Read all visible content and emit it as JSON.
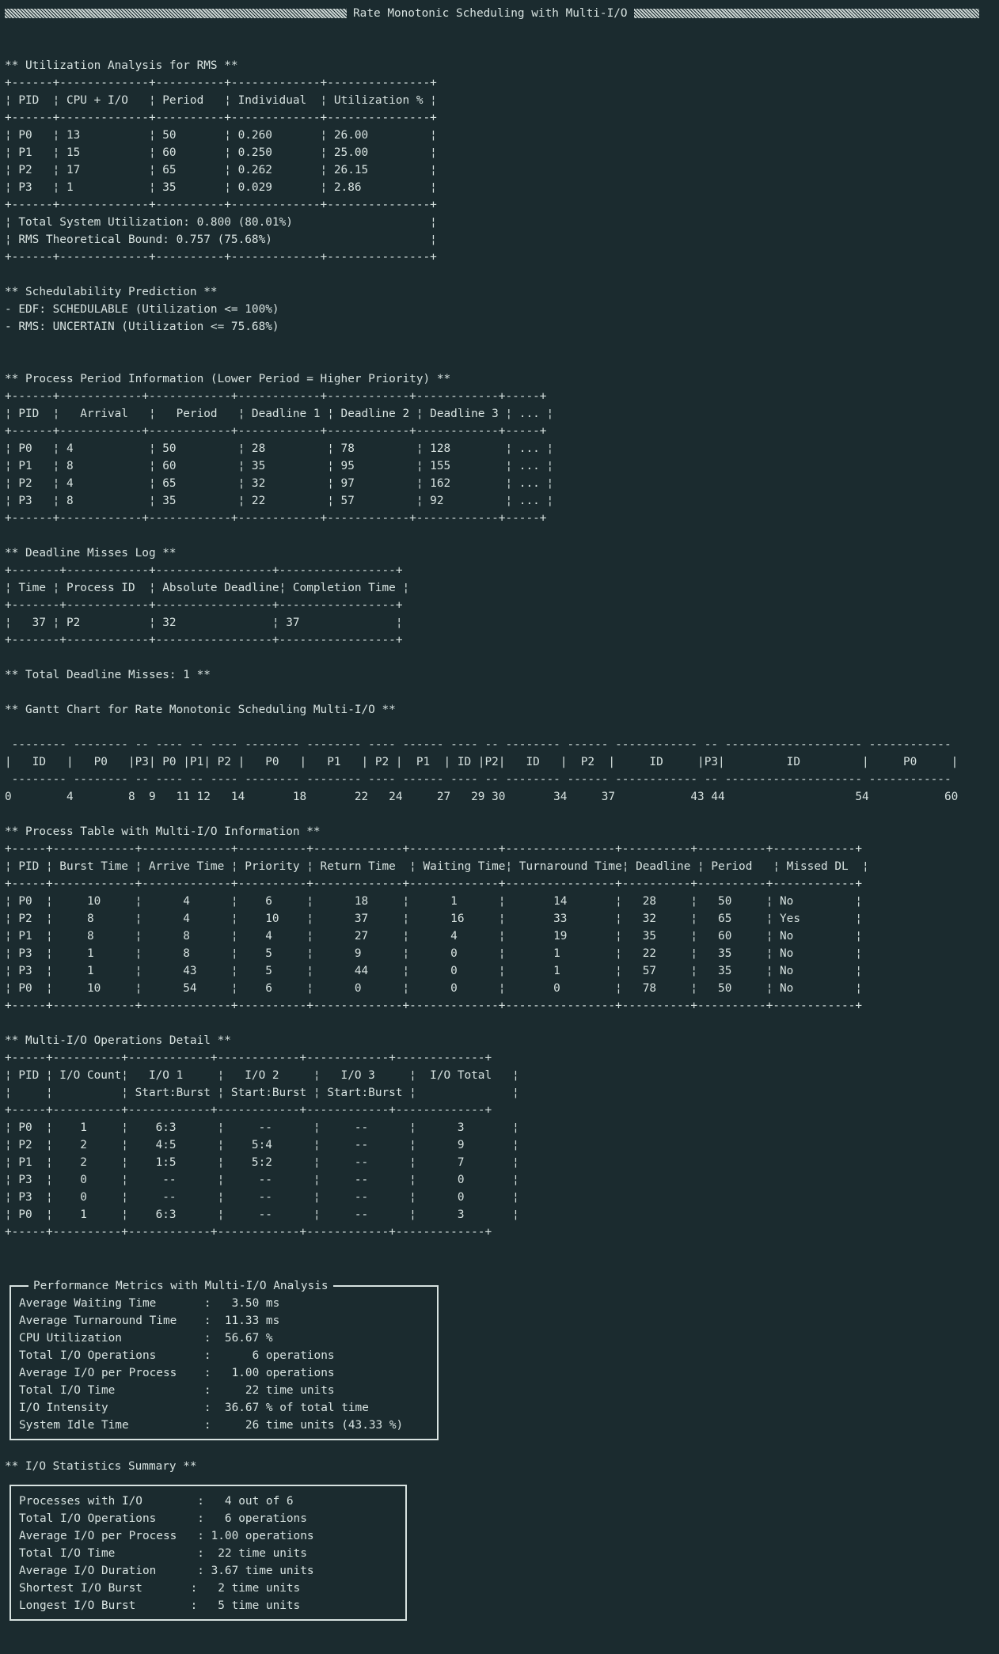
{
  "title": "Rate Monotonic Scheduling with Multi-I/O",
  "util": {
    "heading": "** Utilization Analysis for RMS **",
    "table": "+------+-------------+----------+-------------+---------------+\n¦ PID  ¦ CPU + I/O   ¦ Period   ¦ Individual  ¦ Utilization % ¦\n+------+-------------+----------+-------------+---------------+\n¦ P0   ¦ 13          ¦ 50       ¦ 0.260       ¦ 26.00         ¦\n¦ P1   ¦ 15          ¦ 60       ¦ 0.250       ¦ 25.00         ¦\n¦ P2   ¦ 17          ¦ 65       ¦ 0.262       ¦ 26.15         ¦\n¦ P3   ¦ 1           ¦ 35       ¦ 0.029       ¦ 2.86          ¦\n+------+-------------+----------+-------------+---------------+\n¦ Total System Utilization: 0.800 (80.01%)                    ¦\n¦ RMS Theoretical Bound: 0.757 (75.68%)                       ¦\n+------+-------------+----------+-------------+---------------+"
  },
  "sched": {
    "heading": "** Schedulability Prediction **",
    "lines": "- EDF: SCHEDULABLE (Utilization <= 100%)\n- RMS: UNCERTAIN (Utilization <= 75.68%)"
  },
  "period": {
    "heading": "** Process Period Information (Lower Period = Higher Priority) **",
    "table": "+------+------------+------------+------------+------------+------------+-----+\n¦ PID  ¦   Arrival   ¦   Period   ¦ Deadline 1 ¦ Deadline 2 ¦ Deadline 3 ¦ ... ¦\n+------+------------+------------+------------+------------+------------+-----+\n¦ P0   ¦ 4           ¦ 50         ¦ 28         ¦ 78         ¦ 128        ¦ ... ¦\n¦ P1   ¦ 8           ¦ 60         ¦ 35         ¦ 95         ¦ 155        ¦ ... ¦\n¦ P2   ¦ 4           ¦ 65         ¦ 32         ¦ 97         ¦ 162        ¦ ... ¦\n¦ P3   ¦ 8           ¦ 35         ¦ 22         ¦ 57         ¦ 92         ¦ ... ¦\n+------+------------+------------+------------+------------+------------+-----+"
  },
  "misses": {
    "heading": "** Deadline Misses Log **",
    "table": "+-------+------------+-----------------+-----------------+\n¦ Time ¦ Process ID  ¦ Absolute Deadline¦ Completion Time ¦\n+-------+------------+-----------------+-----------------+\n¦   37 ¦ P2          ¦ 32              ¦ 37              ¦\n+-------+------------+-----------------+-----------------+",
    "total": "** Total Deadline Misses: 1 **"
  },
  "gantt": {
    "heading": "** Gantt Chart for Rate Monotonic Scheduling Multi-I/O **",
    "top": " -------- -------- -- ---- -- ---- -------- -------- ---- ------ ---- -- -------- ------ ------------ -- -------------------- ------------",
    "row": "|   ID   |   P0   |P3| P0 |P1| P2 |   P0   |   P1   | P2 |  P1  | ID |P2|   ID   |  P2  |     ID     |P3|         ID         |     P0     |",
    "bottom": " -------- -------- -- ---- -- ---- -------- -------- ---- ------ ---- -- -------- ------ ------------ -- -------------------- ------------",
    "times": "0        4        8  9   11 12   14       18       22   24     27   29 30       34     37           43 44                   54           60"
  },
  "proc": {
    "heading": "** Process Table with Multi-I/O Information **",
    "table": "+-----+------------+-------------+----------+-------------+-------------+----------------+----------+----------+------------+\n¦ PID ¦ Burst Time ¦ Arrive Time ¦ Priority ¦ Return Time  ¦ Waiting Time¦ Turnaround Time¦ Deadline ¦ Period   ¦ Missed DL  ¦\n+-----+------------+-------------+----------+-------------+-------------+----------------+----------+----------+------------+\n¦ P0  ¦     10     ¦      4      ¦    6     ¦      18     ¦      1      ¦       14       ¦   28     ¦   50     ¦ No         ¦\n¦ P2  ¦     8      ¦      4      ¦    10    ¦      37     ¦      16     ¦       33       ¦   32     ¦   65     ¦ Yes        ¦\n¦ P1  ¦     8      ¦      8      ¦    4     ¦      27     ¦      4      ¦       19       ¦   35     ¦   60     ¦ No         ¦\n¦ P3  ¦     1      ¦      8      ¦    5     ¦      9      ¦      0      ¦       1        ¦   22     ¦   35     ¦ No         ¦\n¦ P3  ¦     1      ¦      43     ¦    5     ¦      44     ¦      0      ¦       1        ¦   57     ¦   35     ¦ No         ¦\n¦ P0  ¦     10     ¦      54     ¦    6     ¦      0      ¦      0      ¦       0        ¦   78     ¦   50     ¦ No         ¦\n+-----+------------+-------------+----------+-------------+-------------+----------------+----------+----------+------------+"
  },
  "multiio": {
    "heading": "** Multi-I/O Operations Detail **",
    "table": "+-----+----------+------------+------------+------------+-------------+\n¦ PID ¦ I/O Count¦   I/O 1     ¦   I/O 2     ¦   I/O 3     ¦  I/O Total   ¦\n¦     ¦          ¦ Start:Burst ¦ Start:Burst ¦ Start:Burst ¦              ¦\n+-----+----------+------------+------------+------------+-------------+\n¦ P0  ¦    1     ¦    6:3      ¦     --      ¦     --      ¦      3       ¦\n¦ P2  ¦    2     ¦    4:5      ¦    5:4      ¦     --      ¦      9       ¦\n¦ P1  ¦    2     ¦    1:5      ¦    5:2      ¦     --      ¦      7       ¦\n¦ P3  ¦    0     ¦     --      ¦     --      ¦     --      ¦      0       ¦\n¦ P3  ¦    0     ¦     --      ¦     --      ¦     --      ¦      0       ¦\n¦ P0  ¦    1     ¦    6:3      ¦     --      ¦     --      ¦      3       ¦\n+-----+----------+------------+------------+------------+-------------+"
  },
  "perf": {
    "legend": "Performance Metrics with Multi-I/O Analysis",
    "body": "Average Waiting Time       :   3.50 ms\nAverage Turnaround Time    :  11.33 ms\nCPU Utilization            :  56.67 %\nTotal I/O Operations       :      6 operations\nAverage I/O per Process    :   1.00 operations\nTotal I/O Time             :     22 time units\nI/O Intensity              :  36.67 % of total time\nSystem Idle Time           :     26 time units (43.33 %)"
  },
  "iostats": {
    "heading": "** I/O Statistics Summary **",
    "body": "Processes with I/O        :   4 out of 6\nTotal I/O Operations      :   6 operations\nAverage I/O per Process   : 1.00 operations\nTotal I/O Time            :  22 time units\nAverage I/O Duration      : 3.67 time units\nShortest I/O Burst       :   2 time units\nLongest I/O Burst        :   5 time units"
  }
}
